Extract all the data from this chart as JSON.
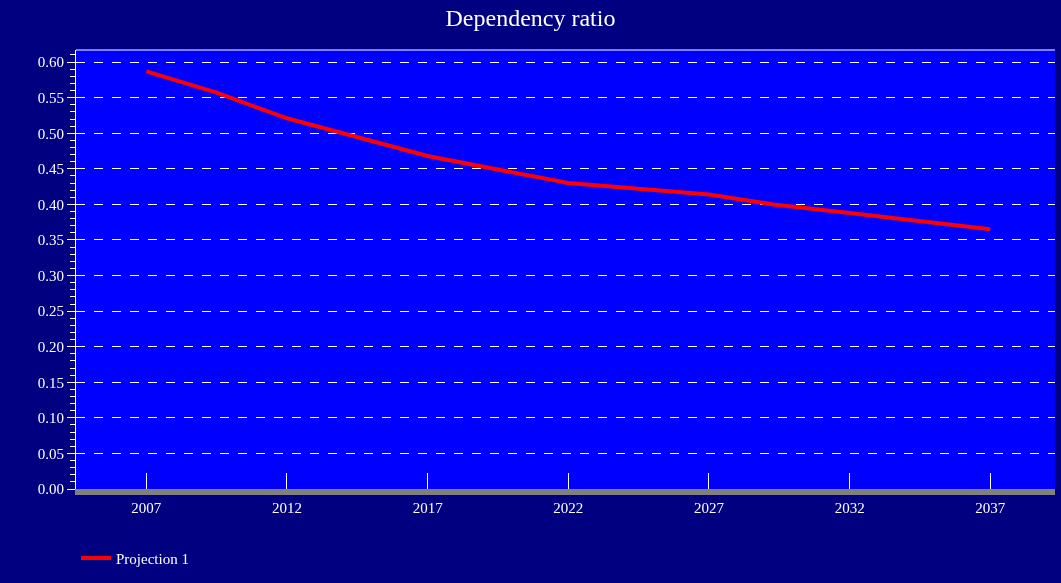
{
  "chart_data": {
    "type": "line",
    "title": "Dependency ratio",
    "x": [
      2007,
      2009.5,
      2012,
      2017,
      2022,
      2027,
      2029.3,
      2032,
      2037
    ],
    "series": [
      {
        "name": "Projection 1",
        "color": "#ff0000",
        "values": [
          0.587,
          0.557,
          0.521,
          0.468,
          0.43,
          0.414,
          0.4,
          0.388,
          0.365
        ]
      }
    ],
    "xlim": [
      2004.5,
      2039.3
    ],
    "xticks": [
      2007,
      2012,
      2017,
      2022,
      2027,
      2032,
      2037
    ],
    "ylim": [
      0,
      0.617
    ],
    "yticks": [
      {
        "value": 0,
        "label": "0.00"
      },
      {
        "value": 0.05,
        "label": "0.05"
      },
      {
        "value": 0.1,
        "label": "0.10"
      },
      {
        "value": 0.15,
        "label": "0.15"
      },
      {
        "value": 0.2,
        "label": "0.20"
      },
      {
        "value": 0.25,
        "label": "0.25"
      },
      {
        "value": 0.3,
        "label": "0.30"
      },
      {
        "value": 0.35,
        "label": "0.35"
      },
      {
        "value": 0.4,
        "label": "0.40"
      },
      {
        "value": 0.45,
        "label": "0.45"
      },
      {
        "value": 0.5,
        "label": "0.50"
      },
      {
        "value": 0.55,
        "label": "0.55"
      },
      {
        "value": 0.6,
        "label": "0.60"
      }
    ],
    "grid": "y",
    "legend": "bottom left",
    "marker": "none",
    "line_style": "solid"
  }
}
